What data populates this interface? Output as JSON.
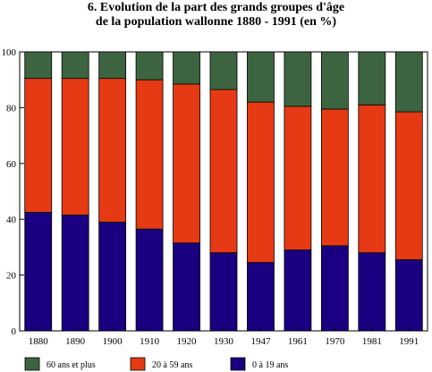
{
  "chart_data": {
    "type": "bar",
    "stacked": true,
    "title": "6.  Evolution de la part des grands groupes d'âge",
    "subtitle": "de la population wallonne 1880 - 1991 (en %)",
    "xlabel": "",
    "ylabel": "",
    "ylim": [
      0,
      100
    ],
    "yticks": [
      "0",
      "20",
      "40",
      "60",
      "80",
      "100"
    ],
    "grid": false,
    "legend_position": "bottom",
    "categories": [
      "1880",
      "1890",
      "1900",
      "1910",
      "1920",
      "1930",
      "1947",
      "1961",
      "1970",
      "1981",
      "1991"
    ],
    "series": [
      {
        "name": "0 à 19 ans",
        "color": "#1a0080",
        "values": [
          42.5,
          41.5,
          39.0,
          36.5,
          31.5,
          28.0,
          24.5,
          29.0,
          30.5,
          28.0,
          25.5
        ]
      },
      {
        "name": "20 à 59 ans",
        "color": "#e63a14",
        "values": [
          48.0,
          49.0,
          51.5,
          53.5,
          57.0,
          58.5,
          57.5,
          51.5,
          49.0,
          53.0,
          53.0
        ]
      },
      {
        "name": "60 ans et plus",
        "color": "#3c6440",
        "values": [
          9.5,
          9.5,
          9.5,
          10.0,
          11.5,
          13.5,
          18.0,
          19.5,
          20.5,
          19.0,
          21.5
        ]
      }
    ],
    "legend_order": [
      "60 ans et plus",
      "20 à 59 ans",
      "0 à 19 ans"
    ]
  }
}
